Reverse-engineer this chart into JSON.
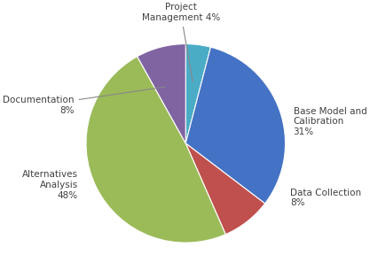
{
  "values": [
    4,
    31,
    8,
    48,
    8
  ],
  "colors": [
    "#4BACC6",
    "#4472C4",
    "#C0504D",
    "#9BBB59",
    "#8064A2"
  ],
  "labels": [
    "Project\nManagement 4%",
    "Base Model and\nCalibration\n31%",
    "Data Collection\n8%",
    "Alternatives\nAnalysis\n48%",
    "Documentation\n8%"
  ],
  "startangle": 90,
  "background_color": "#ffffff",
  "fontsize": 7.5,
  "text_color": "#404040"
}
